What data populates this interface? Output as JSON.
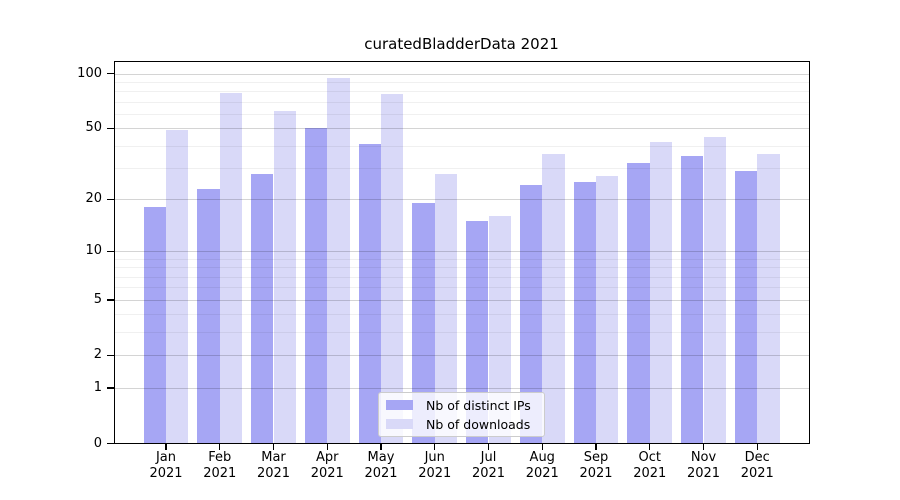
{
  "title": "curatedBladderData 2021",
  "legend": {
    "items": [
      {
        "label": "Nb of distinct IPs",
        "color": "#a6a6f4"
      },
      {
        "label": "Nb of downloads",
        "color": "#d9d9f8"
      }
    ]
  },
  "axes": {
    "ytick_labels": [
      "100",
      "50",
      "20",
      "10",
      "5",
      "2",
      "1",
      "0"
    ],
    "xtick_year": "2021"
  },
  "chart_data": {
    "type": "bar",
    "title": "curatedBladderData 2021",
    "categories": [
      "Jan 2021",
      "Feb 2021",
      "Mar 2021",
      "Apr 2021",
      "May 2021",
      "Jun 2021",
      "Jul 2021",
      "Aug 2021",
      "Sep 2021",
      "Oct 2021",
      "Nov 2021",
      "Dec 2021"
    ],
    "series": [
      {
        "name": "Nb of distinct IPs",
        "color": "#a6a6f4",
        "values": [
          18,
          23,
          28,
          50,
          41,
          19,
          15,
          24,
          25,
          32,
          35,
          29
        ]
      },
      {
        "name": "Nb of downloads",
        "color": "#d9d9f8",
        "values": [
          49,
          78,
          62,
          94,
          77,
          28,
          16,
          36,
          27,
          42,
          45,
          36
        ]
      }
    ],
    "yscale": "log1p",
    "yticks": [
      0,
      1,
      2,
      5,
      10,
      20,
      50,
      100
    ],
    "minor_yticks": [
      3,
      4,
      6,
      7,
      8,
      9,
      30,
      40,
      60,
      70,
      80,
      90
    ],
    "ylim": [
      0,
      118
    ],
    "grid": true,
    "legend_position": "lower center"
  }
}
